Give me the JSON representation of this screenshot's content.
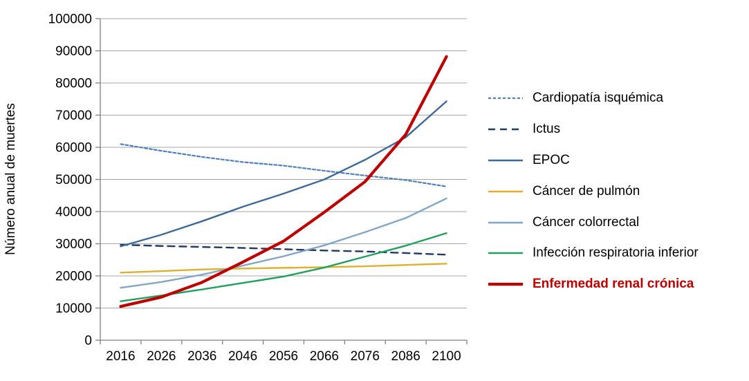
{
  "chart_data": {
    "type": "line",
    "title": "",
    "xlabel": "",
    "ylabel": "Número anual de muertes",
    "ylim": [
      0,
      100000
    ],
    "y_tick_step": 10000,
    "y_tick_labels": [
      "0",
      "10000",
      "20000",
      "30000",
      "40000",
      "50000",
      "60000",
      "70000",
      "80000",
      "90000",
      "100000"
    ],
    "grid": true,
    "legend_position": "right",
    "categories": [
      "2016",
      "2026",
      "2036",
      "2046",
      "2056",
      "2066",
      "2076",
      "2086",
      "2100"
    ],
    "series": [
      {
        "name": "Cardiopatía isquémica",
        "color": "#4A7EBE",
        "dash": "4 3",
        "width": 2.2,
        "legend_bold": false,
        "values": [
          61000,
          58900,
          57000,
          55400,
          54300,
          52700,
          51200,
          49800,
          47800
        ]
      },
      {
        "name": "Ictus",
        "color": "#1F3864",
        "dash": "10 7",
        "width": 2.4,
        "legend_bold": false,
        "values": [
          29700,
          29300,
          29000,
          28700,
          28300,
          27900,
          27600,
          27100,
          26600
        ]
      },
      {
        "name": "EPOC",
        "color": "#3A699E",
        "dash": null,
        "width": 2.4,
        "legend_bold": false,
        "values": [
          29200,
          32800,
          37000,
          41500,
          45600,
          50000,
          56100,
          63100,
          74300
        ]
      },
      {
        "name": "Cáncer de pulmón",
        "color": "#DFB02D",
        "dash": null,
        "width": 2.4,
        "legend_bold": false,
        "values": [
          21000,
          21500,
          22000,
          22300,
          22500,
          22700,
          23000,
          23400,
          23800
        ]
      },
      {
        "name": "Cáncer colorrectal",
        "color": "#7FA6C9",
        "dash": null,
        "width": 2.4,
        "legend_bold": false,
        "values": [
          16300,
          18100,
          20400,
          23200,
          26100,
          29500,
          33600,
          38000,
          44100
        ]
      },
      {
        "name": "Infección respiratoria inferior",
        "color": "#1FA05C",
        "dash": null,
        "width": 2.4,
        "legend_bold": false,
        "values": [
          12100,
          13900,
          15800,
          17800,
          19800,
          22600,
          26000,
          29400,
          33300
        ]
      },
      {
        "name": "Enfermedad renal crónica",
        "color": "#C00000",
        "dash": null,
        "width": 4.2,
        "legend_bold": true,
        "values": [
          10500,
          13400,
          18000,
          24300,
          30800,
          39800,
          49300,
          64000,
          88200
        ]
      }
    ],
    "axis_color": "#808080",
    "grid_color": "#a6a6a6"
  }
}
